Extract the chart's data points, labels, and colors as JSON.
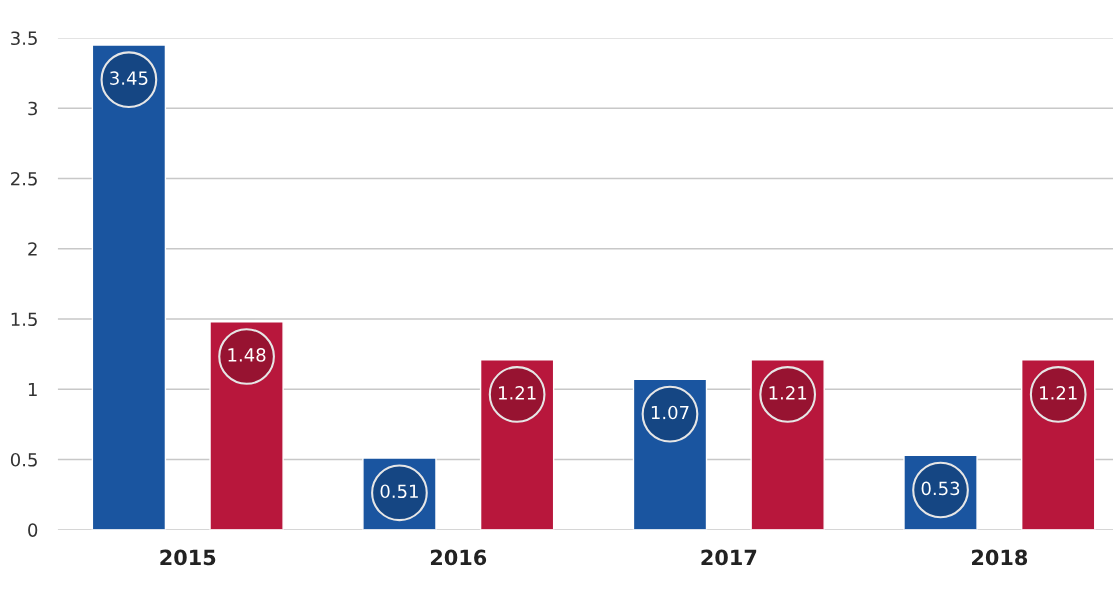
{
  "chart_data": {
    "type": "bar",
    "categories": [
      "2015",
      "2016",
      "2017",
      "2018"
    ],
    "series": [
      {
        "color": "#1a55a0",
        "values": [
          3.45,
          0.51,
          1.07,
          0.53
        ]
      },
      {
        "color": "#b8173c",
        "values": [
          1.48,
          1.21,
          1.21,
          1.21
        ]
      }
    ],
    "ylim": [
      0,
      3.5
    ],
    "yticks": [
      0,
      0.5,
      1,
      1.5,
      2,
      2.5,
      3,
      3.5
    ],
    "grid": "y",
    "data_labels": true
  }
}
